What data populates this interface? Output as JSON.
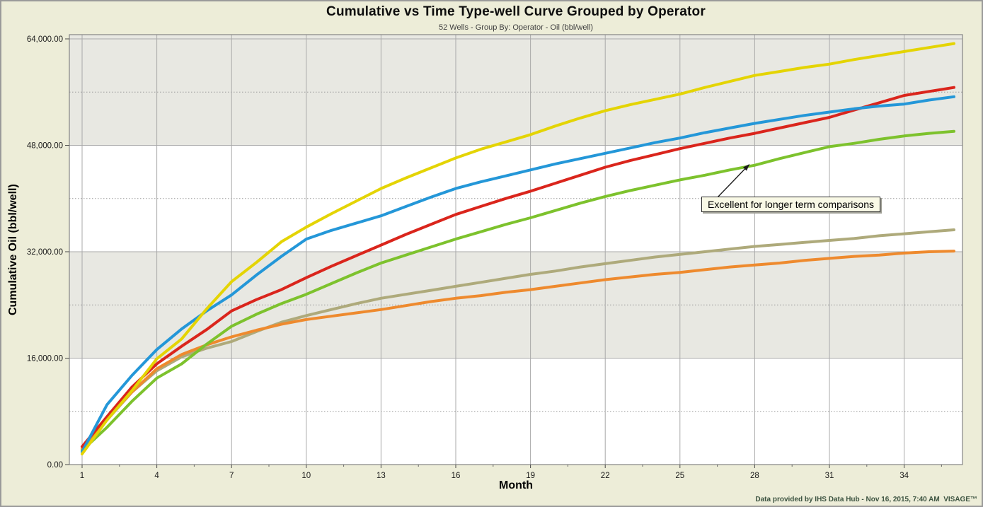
{
  "title": "Cumulative vs Time Type-well Curve Grouped by Operator",
  "subtitle": "52 Wells - Group By: Operator - Oil (bbl/well)",
  "footer": "Data provided by IHS Data Hub - Nov 16, 2015, 7:40 AM  VISAGE™",
  "annotation": {
    "text": "Excellent for longer term comparisons",
    "target_month": 27.8,
    "target_value": 45200
  },
  "colors": {
    "page_background": "#ededd8",
    "plot_background": "#ffffff",
    "band_gray": "#e8e8e2",
    "gridline": "#a9a9a9",
    "minor_gridline": "#9b9b9b",
    "plot_border": "#848484",
    "footer_text": "#3c5340"
  },
  "chart_data": {
    "type": "line",
    "title": "Cumulative vs Time Type-well Curve Grouped by Operator",
    "subtitle": "52 Wells - Group By: Operator - Oil (bbl/well)",
    "xlabel": "Month",
    "ylabel": "Cumulative Oil (bbl/well)",
    "xlim": [
      1,
      36.4
    ],
    "ylim": [
      0,
      64600
    ],
    "grid": "major-solid-minor-dotted-horizontal-bands",
    "legend": "none",
    "x_ticks": [
      1,
      4,
      7,
      10,
      13,
      16,
      19,
      22,
      25,
      28,
      31,
      34
    ],
    "x_minor_ticks": [
      2.5,
      5.5,
      8.5,
      11.5,
      14.5,
      17.5,
      20.5,
      23.5,
      26.5,
      29.5,
      32.5,
      35.5
    ],
    "y_ticks": [
      {
        "value": 0,
        "label": "0.00"
      },
      {
        "value": 16000,
        "label": "16,000.00"
      },
      {
        "value": 32000,
        "label": "32,000.00"
      },
      {
        "value": 48000,
        "label": "48,000.00"
      },
      {
        "value": 64000,
        "label": "64,000.00"
      }
    ],
    "y_minor_gridlines": [
      8000,
      24000,
      40000,
      56000
    ],
    "x": [
      1,
      2,
      3,
      4,
      5,
      6,
      7,
      8,
      9,
      10,
      11,
      12,
      13,
      14,
      15,
      16,
      17,
      18,
      19,
      20,
      21,
      22,
      23,
      24,
      25,
      26,
      27,
      28,
      29,
      30,
      31,
      32,
      33,
      34,
      35,
      36
    ],
    "series": [
      {
        "name": "operator-tan",
        "color": "#aeaa7b",
        "values": [
          2300,
          6700,
          10900,
          14100,
          16200,
          17500,
          18500,
          20000,
          21400,
          22400,
          23300,
          24200,
          25000,
          25600,
          26200,
          26800,
          27400,
          28000,
          28600,
          29100,
          29700,
          30200,
          30700,
          31200,
          31600,
          32000,
          32400,
          32800,
          33100,
          33400,
          33700,
          34000,
          34400,
          34700,
          35000,
          35300
        ]
      },
      {
        "name": "operator-orange",
        "color": "#ee8a2e",
        "values": [
          2400,
          6900,
          10900,
          14400,
          16550,
          18000,
          19200,
          20200,
          21100,
          21800,
          22300,
          22800,
          23300,
          23900,
          24500,
          25000,
          25400,
          25900,
          26300,
          26800,
          27300,
          27800,
          28200,
          28600,
          28900,
          29300,
          29700,
          30000,
          30300,
          30700,
          31000,
          31300,
          31500,
          31800,
          32000,
          32100
        ]
      },
      {
        "name": "operator-green",
        "color": "#7dc22d",
        "values": [
          2100,
          5600,
          9500,
          13000,
          15150,
          18100,
          20800,
          22600,
          24200,
          25600,
          27200,
          28800,
          30300,
          31500,
          32700,
          33900,
          35000,
          36100,
          37100,
          38200,
          39300,
          40300,
          41200,
          42000,
          42800,
          43500,
          44300,
          45000,
          46000,
          46900,
          47800,
          48300,
          48900,
          49400,
          49800,
          50100
        ]
      },
      {
        "name": "operator-red",
        "color": "#da251c",
        "values": [
          2700,
          7200,
          11650,
          15150,
          17800,
          20300,
          23100,
          24800,
          26300,
          28100,
          29800,
          31400,
          33000,
          34600,
          36100,
          37600,
          38800,
          40000,
          41100,
          42300,
          43500,
          44700,
          45700,
          46600,
          47500,
          48300,
          49100,
          49800,
          50600,
          51400,
          52200,
          53300,
          54400,
          55500,
          56100,
          56700
        ]
      },
      {
        "name": "operator-blue",
        "color": "#2497d8",
        "values": [
          1900,
          9000,
          13400,
          17300,
          20400,
          23100,
          25500,
          28500,
          31300,
          33900,
          35200,
          36300,
          37400,
          38800,
          40200,
          41500,
          42500,
          43400,
          44300,
          45200,
          46000,
          46800,
          47600,
          48400,
          49100,
          49900,
          50600,
          51300,
          51900,
          52500,
          53000,
          53500,
          53900,
          54200,
          54800,
          55300
        ]
      },
      {
        "name": "operator-yellow",
        "color": "#e4d404",
        "values": [
          1600,
          6700,
          11100,
          15900,
          18900,
          23400,
          27500,
          30400,
          33500,
          35700,
          37700,
          39600,
          41500,
          43100,
          44600,
          46100,
          47400,
          48500,
          49600,
          50900,
          52100,
          53200,
          54100,
          54900,
          55700,
          56700,
          57600,
          58500,
          59100,
          59700,
          60200,
          60900,
          61500,
          62100,
          62700,
          63300
        ]
      }
    ]
  }
}
